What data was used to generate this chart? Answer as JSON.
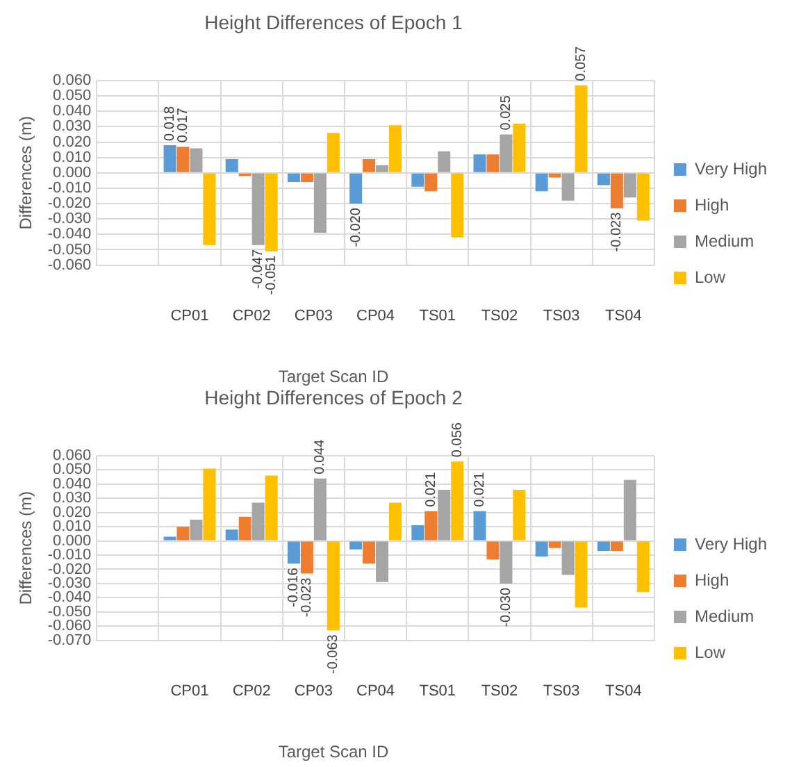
{
  "chart_data": [
    {
      "type": "bar",
      "title": "Height Differences of Epoch 1",
      "xlabel": "Target Scan ID",
      "ylabel": "Differences (m)",
      "legend": "right",
      "grid": true,
      "categories": [
        null,
        "CP01",
        "CP02",
        "CP03",
        "CP04",
        "TS01",
        "TS02",
        "TS03",
        "TS04"
      ],
      "ylim": [
        -0.06,
        0.06
      ],
      "yticks": [
        {
          "value": -0.06,
          "label": "-0.060"
        },
        {
          "value": -0.05,
          "label": "-0.050"
        },
        {
          "value": -0.04,
          "label": "-0.040"
        },
        {
          "value": -0.03,
          "label": "-0.030"
        },
        {
          "value": -0.02,
          "label": "-0.020"
        },
        {
          "value": -0.01,
          "label": "-0.010"
        },
        {
          "value": 0,
          "label": "0.000"
        },
        {
          "value": 0.01,
          "label": "0.010"
        },
        {
          "value": 0.02,
          "label": "0.020"
        },
        {
          "value": 0.03,
          "label": "0.030"
        },
        {
          "value": 0.04,
          "label": "0.040"
        },
        {
          "value": 0.05,
          "label": "0.050"
        },
        {
          "value": 0.06,
          "label": "0.060"
        }
      ],
      "series": [
        {
          "name": "Very High",
          "color": "#5b9bd5",
          "values": [
            null,
            0.018,
            0.009,
            -0.006,
            -0.02,
            -0.009,
            0.012,
            -0.012,
            -0.008
          ],
          "value_labels": [
            null,
            "0.018",
            null,
            null,
            "-0.020",
            null,
            null,
            null,
            null
          ]
        },
        {
          "name": "High",
          "color": "#ed7d31",
          "values": [
            null,
            0.017,
            -0.002,
            -0.006,
            0.009,
            -0.012,
            0.012,
            -0.003,
            -0.023
          ],
          "value_labels": [
            null,
            "0.017",
            null,
            null,
            null,
            null,
            null,
            null,
            "-0.023"
          ]
        },
        {
          "name": "Medium",
          "color": "#a5a5a5",
          "values": [
            null,
            0.016,
            -0.047,
            -0.039,
            0.005,
            0.014,
            0.025,
            -0.018,
            -0.016
          ],
          "value_labels": [
            null,
            null,
            "-0.047",
            null,
            null,
            null,
            "0.025",
            null,
            null
          ]
        },
        {
          "name": "Low",
          "color": "#ffc000",
          "values": [
            null,
            -0.047,
            -0.051,
            0.026,
            0.031,
            -0.042,
            0.032,
            0.057,
            -0.031
          ],
          "value_labels": [
            null,
            null,
            "-0.051",
            null,
            null,
            null,
            null,
            "0.057",
            null
          ]
        }
      ]
    },
    {
      "type": "bar",
      "title": "Height Differences of Epoch 2",
      "xlabel": "Target Scan ID",
      "ylabel": "Differences (m)",
      "legend": "right",
      "grid": true,
      "categories": [
        null,
        "CP01",
        "CP02",
        "CP03",
        "CP04",
        "TS01",
        "TS02",
        "TS03",
        "TS04"
      ],
      "ylim": [
        -0.07,
        0.06
      ],
      "yticks": [
        {
          "value": -0.07,
          "label": "-0.070"
        },
        {
          "value": -0.06,
          "label": "-0.060"
        },
        {
          "value": -0.05,
          "label": "-0.050"
        },
        {
          "value": -0.04,
          "label": "-0.040"
        },
        {
          "value": -0.03,
          "label": "-0.030"
        },
        {
          "value": -0.02,
          "label": "-0.020"
        },
        {
          "value": -0.01,
          "label": "-0.010"
        },
        {
          "value": 0,
          "label": "0.000"
        },
        {
          "value": 0.01,
          "label": "0.010"
        },
        {
          "value": 0.02,
          "label": "0.020"
        },
        {
          "value": 0.03,
          "label": "0.030"
        },
        {
          "value": 0.04,
          "label": "0.040"
        },
        {
          "value": 0.05,
          "label": "0.050"
        },
        {
          "value": 0.06,
          "label": "0.060"
        }
      ],
      "series": [
        {
          "name": "Very High",
          "color": "#5b9bd5",
          "values": [
            null,
            0.003,
            0.008,
            -0.016,
            -0.006,
            0.011,
            0.021,
            -0.011,
            -0.007
          ],
          "value_labels": [
            null,
            null,
            null,
            "-0.016",
            null,
            null,
            "0.021",
            null,
            null
          ]
        },
        {
          "name": "High",
          "color": "#ed7d31",
          "values": [
            null,
            0.01,
            0.017,
            -0.023,
            -0.016,
            0.021,
            -0.013,
            -0.005,
            -0.007
          ],
          "value_labels": [
            null,
            null,
            null,
            "-0.023",
            null,
            "0.021",
            null,
            null,
            null
          ]
        },
        {
          "name": "Medium",
          "color": "#a5a5a5",
          "values": [
            null,
            0.015,
            0.027,
            0.044,
            -0.029,
            0.036,
            -0.03,
            -0.024,
            0.043
          ],
          "value_labels": [
            null,
            null,
            null,
            "0.044",
            null,
            null,
            "-0.030",
            null,
            null
          ]
        },
        {
          "name": "Low",
          "color": "#ffc000",
          "values": [
            null,
            0.051,
            0.046,
            -0.063,
            0.027,
            0.056,
            0.036,
            -0.047,
            -0.036
          ],
          "value_labels": [
            null,
            null,
            null,
            "-0.063",
            null,
            "0.056",
            null,
            null,
            null
          ]
        }
      ]
    }
  ]
}
